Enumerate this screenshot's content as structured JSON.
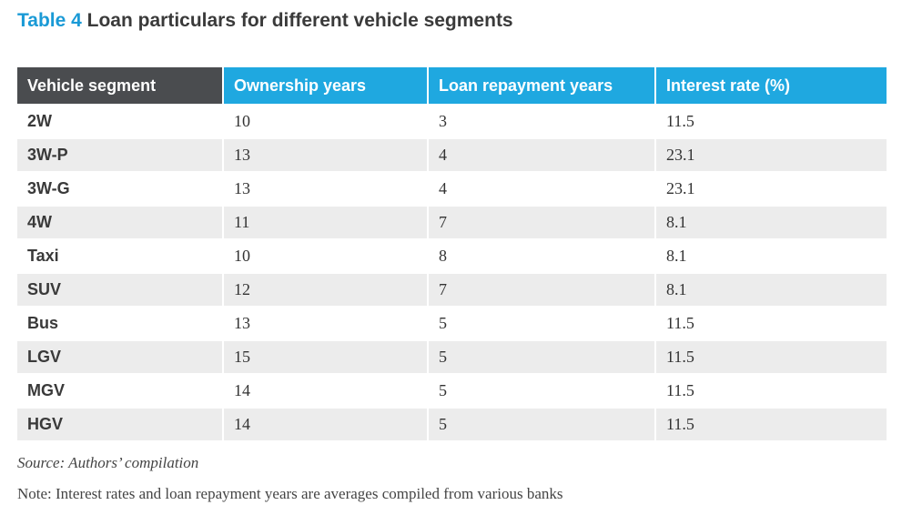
{
  "title": {
    "label": "Table 4",
    "text": "Loan particulars for different vehicle segments"
  },
  "table": {
    "headers": [
      "Vehicle segment",
      "Ownership years",
      "Loan repayment years",
      "Interest rate (%)"
    ],
    "rows": [
      [
        "2W",
        "10",
        "3",
        "11.5"
      ],
      [
        "3W-P",
        "13",
        "4",
        "23.1"
      ],
      [
        "3W-G",
        "13",
        "4",
        "23.1"
      ],
      [
        "4W",
        "11",
        "7",
        "8.1"
      ],
      [
        "Taxi",
        "10",
        "8",
        "8.1"
      ],
      [
        "SUV",
        "12",
        "7",
        "8.1"
      ],
      [
        "Bus",
        "13",
        "5",
        "11.5"
      ],
      [
        "LGV",
        "15",
        "5",
        "11.5"
      ],
      [
        "MGV",
        "14",
        "5",
        "11.5"
      ],
      [
        "HGV",
        "14",
        "5",
        "11.5"
      ]
    ]
  },
  "source": "Source: Authors’ compilation",
  "note": "Note: Interest rates and loan repayment years are averages compiled from various banks",
  "colors": {
    "accent": "#1a9ad6",
    "header_dark": "#4a4c4f",
    "header_blue": "#1fa8e0",
    "row_alt": "#ececec"
  }
}
